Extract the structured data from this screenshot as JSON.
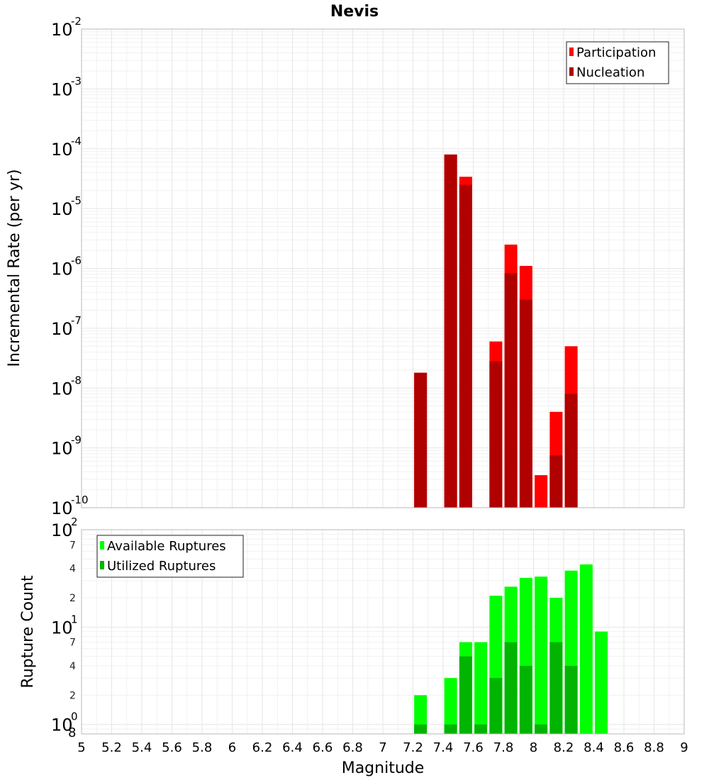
{
  "title": "Nevis",
  "colors": {
    "participation": "#ff0000",
    "nucleation": "#b00000",
    "available": "#00ff00",
    "utilized": "#00b400"
  },
  "chart_data": [
    {
      "type": "bar",
      "title": "Nevis",
      "xlabel": "Magnitude",
      "ylabel": "Incremental Rate (per yr)",
      "yscale": "log",
      "xlim": [
        5,
        9
      ],
      "ylim": [
        1e-10,
        0.01
      ],
      "x_ticks": [
        "5",
        "5.2",
        "5.4",
        "5.6",
        "5.8",
        "6",
        "6.2",
        "6.4",
        "6.6",
        "6.8",
        "7",
        "7.2",
        "7.4",
        "7.6",
        "7.8",
        "8",
        "8.2",
        "8.4",
        "8.6",
        "8.8",
        "9"
      ],
      "y_ticks": [
        {
          "base": "10",
          "exp": "-10",
          "value": 1e-10
        },
        {
          "base": "10",
          "exp": "-9",
          "value": 1e-09
        },
        {
          "base": "10",
          "exp": "-8",
          "value": 1e-08
        },
        {
          "base": "10",
          "exp": "-7",
          "value": 1e-07
        },
        {
          "base": "10",
          "exp": "-6",
          "value": 1e-06
        },
        {
          "base": "10",
          "exp": "-5",
          "value": 1e-05
        },
        {
          "base": "10",
          "exp": "-4",
          "value": 0.0001
        },
        {
          "base": "10",
          "exp": "-3",
          "value": 0.001
        },
        {
          "base": "10",
          "exp": "-2",
          "value": 0.01
        }
      ],
      "legend": [
        "Participation",
        "Nucleation"
      ],
      "legend_position": "top-right",
      "series": [
        {
          "name": "Participation",
          "x": [
            7.25,
            7.45,
            7.55,
            7.75,
            7.85,
            7.95,
            8.05,
            8.15,
            8.25
          ],
          "values": [
            1.8e-08,
            8e-05,
            3.4e-05,
            6e-08,
            2.5e-06,
            1.1e-06,
            3.5e-10,
            4e-09,
            5e-08
          ]
        },
        {
          "name": "Nucleation",
          "x": [
            7.25,
            7.45,
            7.55,
            7.75,
            7.85,
            7.95,
            8.15,
            8.25
          ],
          "values": [
            1.8e-08,
            8e-05,
            2.5e-05,
            2.8e-08,
            8.3e-07,
            3e-07,
            7.5e-10,
            8e-09
          ]
        }
      ]
    },
    {
      "type": "bar",
      "xlabel": "Magnitude",
      "ylabel": "Rupture Count",
      "yscale": "log",
      "xlim": [
        5,
        9
      ],
      "ylim": [
        0.8,
        100
      ],
      "y_ticks": [
        {
          "base": "10",
          "exp": "0",
          "value": 1
        },
        {
          "base": "10",
          "exp": "1",
          "value": 10
        },
        {
          "base": "10",
          "exp": "2",
          "value": 100
        }
      ],
      "y_minor_labels": [
        {
          "label": "8",
          "value": 0.8
        },
        {
          "label": "2",
          "value": 2
        },
        {
          "label": "4",
          "value": 4
        },
        {
          "label": "7",
          "value": 7
        },
        {
          "label": "2",
          "value": 20
        },
        {
          "label": "4",
          "value": 40
        },
        {
          "label": "7",
          "value": 70
        }
      ],
      "legend": [
        "Available Ruptures",
        "Utilized Ruptures"
      ],
      "legend_position": "top-left",
      "series": [
        {
          "name": "Available Ruptures",
          "x": [
            7.25,
            7.45,
            7.55,
            7.65,
            7.75,
            7.85,
            7.95,
            8.05,
            8.15,
            8.25,
            8.35,
            8.45
          ],
          "values": [
            2,
            3,
            7,
            7,
            21,
            26,
            32,
            33,
            20,
            38,
            44,
            9
          ]
        },
        {
          "name": "Utilized Ruptures",
          "x": [
            7.25,
            7.45,
            7.55,
            7.65,
            7.75,
            7.85,
            7.95,
            8.05,
            8.15,
            8.25
          ],
          "values": [
            1,
            1,
            5,
            1,
            3,
            7,
            4,
            1,
            7,
            4
          ]
        }
      ]
    }
  ]
}
